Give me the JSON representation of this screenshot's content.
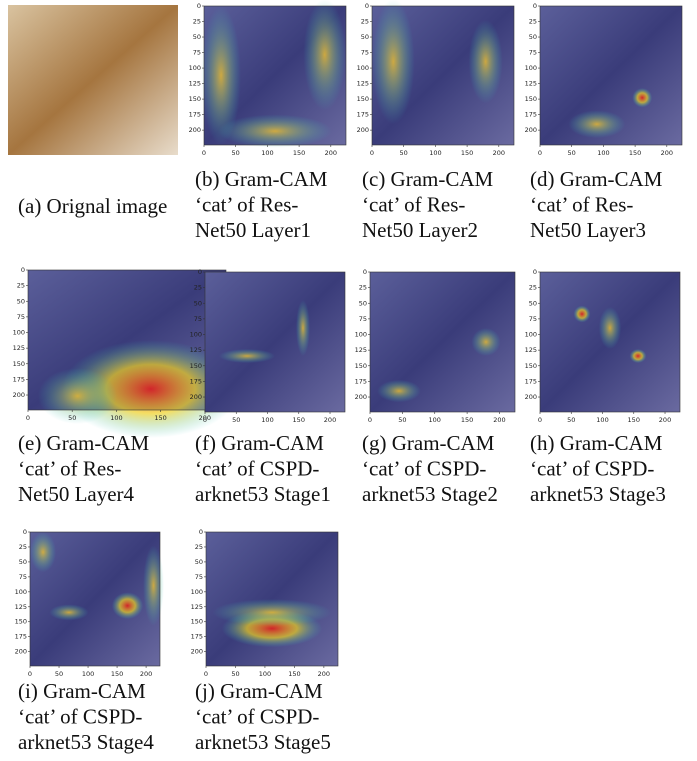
{
  "axis": {
    "xticks": [
      0,
      50,
      100,
      150,
      200
    ],
    "yticks": [
      0,
      25,
      50,
      75,
      100,
      125,
      150,
      175,
      200
    ]
  },
  "panels": [
    {
      "caption": [
        "(a) Orignal image"
      ]
    },
    {
      "caption": [
        "(b) Gram-CAM",
        "‘cat’ of Res-",
        "Net50 Layer1"
      ]
    },
    {
      "caption": [
        "(c) Gram-CAM",
        "‘cat’ of Res-",
        "Net50 Layer2"
      ]
    },
    {
      "caption": [
        "(d) Gram-CAM",
        "‘cat’ of Res-",
        "Net50 Layer3"
      ]
    },
    {
      "caption": [
        "(e) Gram-CAM",
        "‘cat’ of Res-",
        "Net50 Layer4"
      ]
    },
    {
      "caption": [
        "(f) Gram-CAM",
        "‘cat’ of CSPD-",
        "arknet53 Stage1"
      ]
    },
    {
      "caption": [
        "(g) Gram-CAM",
        "‘cat’ of CSPD-",
        "arknet53 Stage2"
      ]
    },
    {
      "caption": [
        "(h) Gram-CAM",
        "‘cat’ of CSPD-",
        "arknet53 Stage3"
      ]
    },
    {
      "caption": [
        "(i) Gram-CAM",
        "‘cat’ of CSPD-",
        "arknet53 Stage4"
      ]
    },
    {
      "caption": [
        "(j) Gram-CAM",
        "‘cat’ of CSPD-",
        "arknet53 Stage5"
      ]
    }
  ]
}
